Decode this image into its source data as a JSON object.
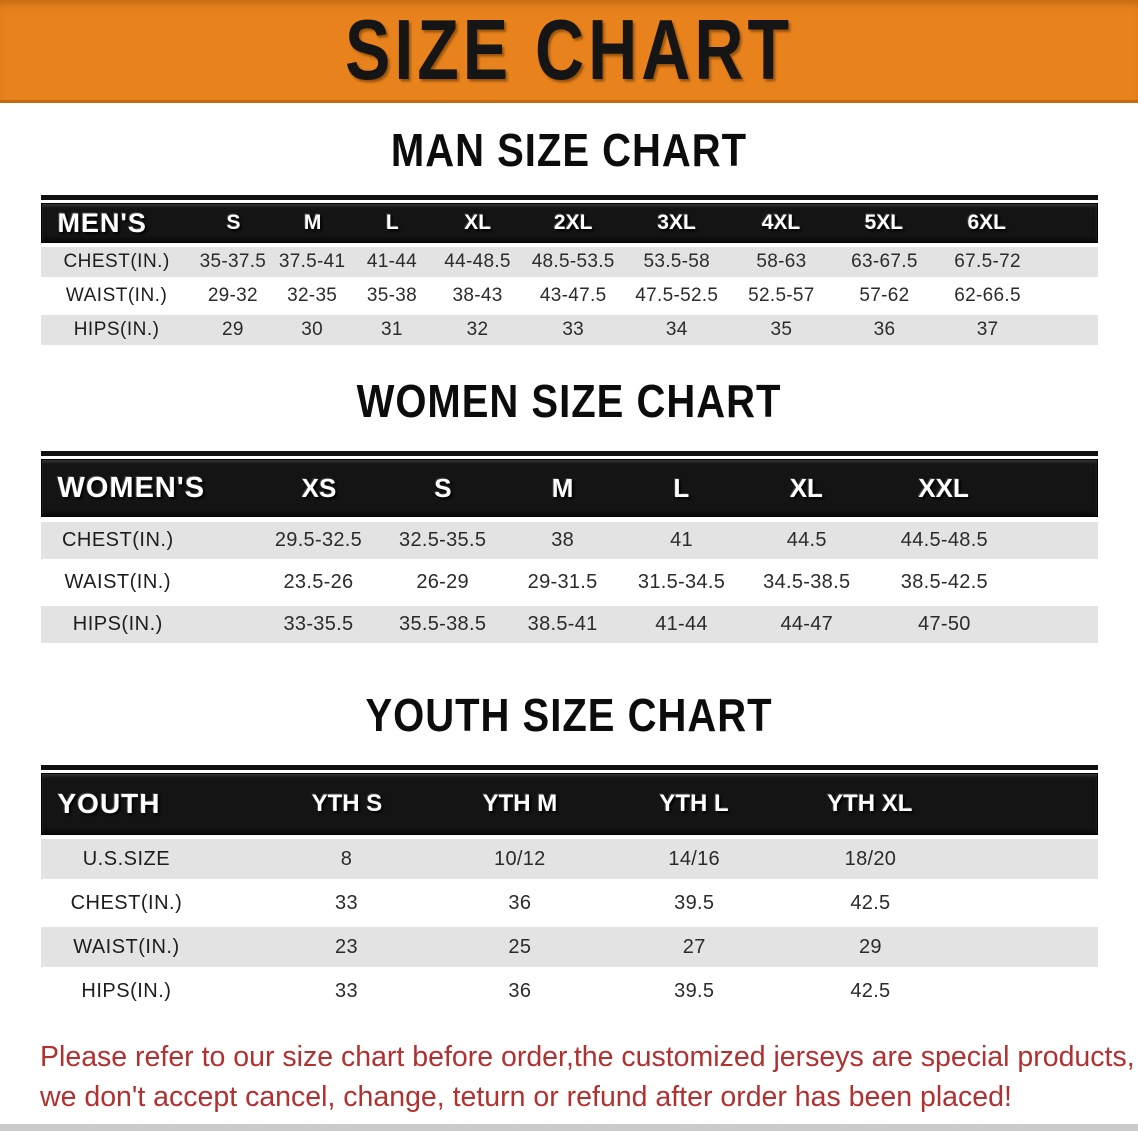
{
  "banner": {
    "title": "SIZE CHART"
  },
  "colors": {
    "banner_bg": "#E8821C",
    "banner_border": "#C16A0E",
    "table_header_bg": "#141414",
    "row_alt_bg": "#E3E3E3",
    "footer_text": "#B13131",
    "bottom_bar": "#CBCBCB"
  },
  "sections": [
    {
      "heading": "MAN SIZE CHART",
      "table": {
        "label": "MEN'S",
        "columns": [
          "S",
          "M",
          "L",
          "XL",
          "2XL",
          "3XL",
          "4XL",
          "5XL",
          "6XL"
        ],
        "rows": [
          {
            "label": "CHEST(IN.)",
            "values": [
              "35-37.5",
              "37.5-41",
              "41-44",
              "44-48.5",
              "48.5-53.5",
              "53.5-58",
              "58-63",
              "63-67.5",
              "67.5-72"
            ]
          },
          {
            "label": "WAIST(IN.)",
            "values": [
              "29-32",
              "32-35",
              "35-38",
              "38-43",
              "43-47.5",
              "47.5-52.5",
              "52.5-57",
              "57-62",
              "62-66.5"
            ]
          },
          {
            "label": "HIPS(IN.)",
            "values": [
              "29",
              "30",
              "31",
              "32",
              "33",
              "34",
              "35",
              "36",
              "37"
            ]
          }
        ]
      }
    },
    {
      "heading": "WOMEN SIZE CHART",
      "table": {
        "label": "WOMEN'S",
        "columns": [
          "XS",
          "S",
          "M",
          "L",
          "XL",
          "XXL"
        ],
        "rows": [
          {
            "label": "CHEST(IN.)",
            "values": [
              "29.5-32.5",
              "32.5-35.5",
              "38",
              "41",
              "44.5",
              "44.5-48.5"
            ]
          },
          {
            "label": "WAIST(IN.)",
            "values": [
              "23.5-26",
              "26-29",
              "29-31.5",
              "31.5-34.5",
              "34.5-38.5",
              "38.5-42.5"
            ]
          },
          {
            "label": "HIPS(IN.)",
            "values": [
              "33-35.5",
              "35.5-38.5",
              "38.5-41",
              "41-44",
              "44-47",
              "47-50"
            ]
          }
        ]
      }
    },
    {
      "heading": "YOUTH SIZE CHART",
      "table": {
        "label": "YOUTH",
        "columns": [
          "YTH S",
          "YTH M",
          "YTH L",
          "YTH XL"
        ],
        "rows": [
          {
            "label": "U.S.SIZE",
            "values": [
              "8",
              "10/12",
              "14/16",
              "18/20"
            ]
          },
          {
            "label": "CHEST(IN.)",
            "values": [
              "33",
              "36",
              "39.5",
              "42.5"
            ]
          },
          {
            "label": "WAIST(IN.)",
            "values": [
              "23",
              "25",
              "27",
              "29"
            ]
          },
          {
            "label": "HIPS(IN.)",
            "values": [
              "33",
              "36",
              "39.5",
              "42.5"
            ]
          }
        ]
      }
    }
  ],
  "footer": {
    "line1": "Please refer to our size chart before order,the customized jerseys are special products,",
    "line2": "we don't accept cancel, change, teturn or refund after order has been placed!"
  }
}
